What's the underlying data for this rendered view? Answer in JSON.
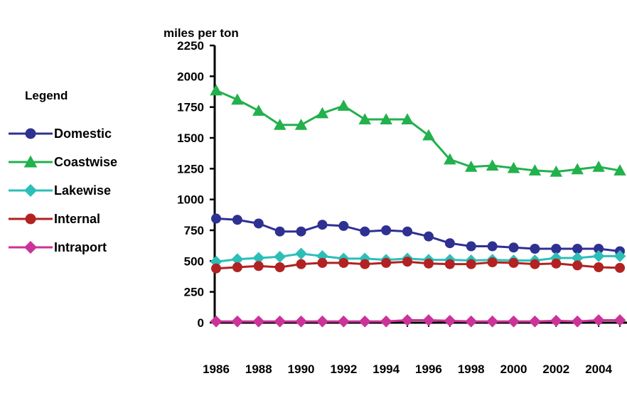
{
  "chart_data": {
    "type": "line",
    "ylabel": "miles per ton",
    "legend_title": "Legend",
    "legend_position": "left",
    "ylim": [
      0,
      2250
    ],
    "yticks": [
      0,
      250,
      500,
      750,
      1000,
      1250,
      1500,
      1750,
      2000,
      2250
    ],
    "x": [
      1986,
      1987,
      1988,
      1989,
      1990,
      1991,
      1992,
      1993,
      1994,
      1995,
      1996,
      1997,
      1998,
      1999,
      2000,
      2001,
      2002,
      2003,
      2004,
      2005
    ],
    "x_tick_labels": [
      "1986",
      "1988",
      "1990",
      "1992",
      "1994",
      "1996",
      "1998",
      "2000",
      "2002",
      "2004"
    ],
    "grid": false,
    "series": [
      {
        "name": "Domestic",
        "color": "#2E3192",
        "marker": "circle",
        "values": [
          845,
          835,
          805,
          740,
          740,
          795,
          785,
          740,
          750,
          740,
          700,
          645,
          620,
          620,
          610,
          600,
          600,
          600,
          600,
          580
        ]
      },
      {
        "name": "Coastwise",
        "color": "#22B14C",
        "marker": "triangle",
        "values": [
          1885,
          1810,
          1720,
          1605,
          1605,
          1700,
          1760,
          1650,
          1650,
          1650,
          1520,
          1325,
          1265,
          1275,
          1255,
          1235,
          1225,
          1245,
          1265,
          1235
        ]
      },
      {
        "name": "Lakewise",
        "color": "#2BBFB8",
        "marker": "diamond",
        "values": [
          495,
          515,
          525,
          535,
          560,
          540,
          520,
          520,
          510,
          520,
          510,
          510,
          505,
          510,
          505,
          505,
          525,
          525,
          540,
          540
        ]
      },
      {
        "name": "Internal",
        "color": "#B22222",
        "marker": "circle",
        "values": [
          440,
          450,
          460,
          450,
          475,
          485,
          485,
          475,
          485,
          495,
          480,
          475,
          475,
          490,
          485,
          475,
          480,
          465,
          450,
          445
        ]
      },
      {
        "name": "Intraport",
        "color": "#CC3399",
        "marker": "diamond",
        "values": [
          10,
          10,
          10,
          10,
          10,
          10,
          10,
          10,
          10,
          20,
          20,
          15,
          10,
          10,
          10,
          10,
          15,
          10,
          20,
          20
        ]
      }
    ]
  }
}
